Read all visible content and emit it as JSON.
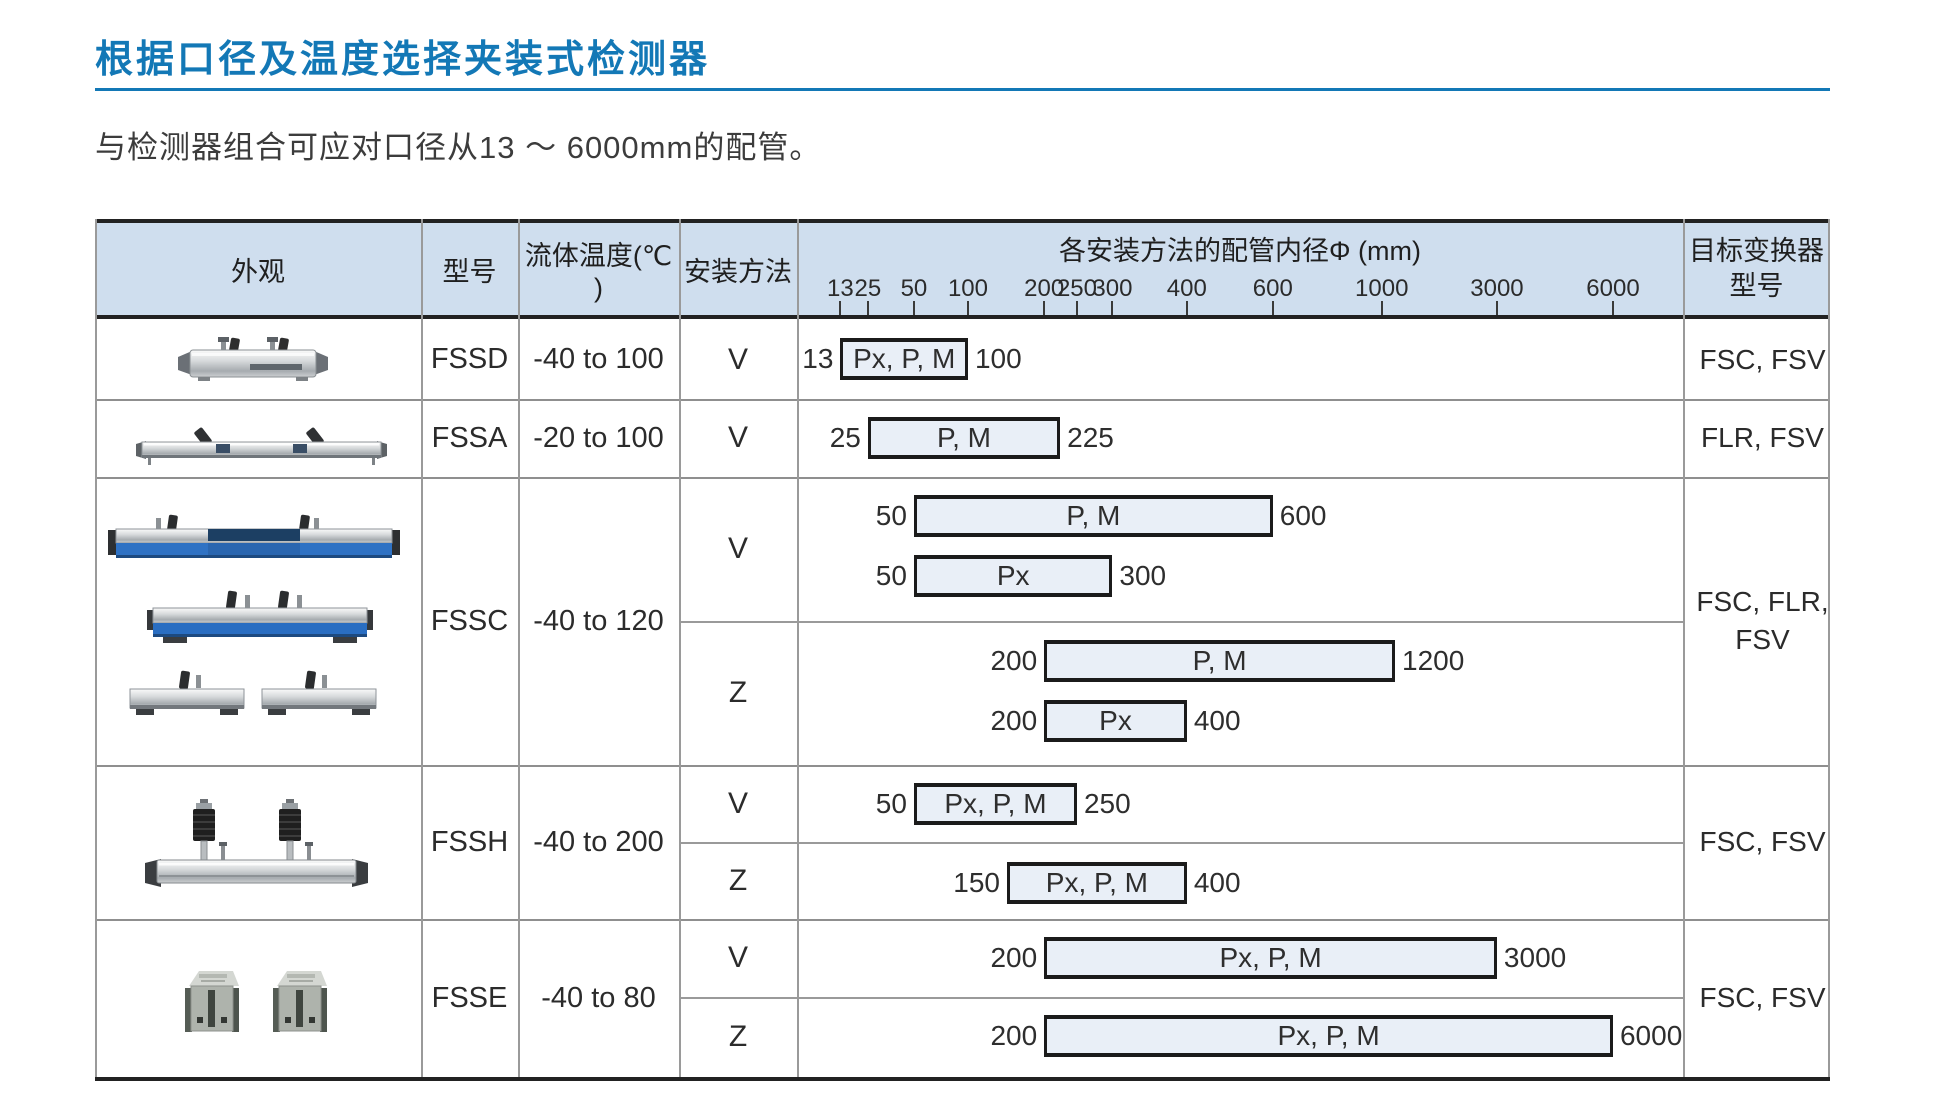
{
  "page": {
    "title": "根据口径及温度选择夹装式检测器",
    "subtitle": "与检测器组合可应对口径从13 ～ 6000mm的配管。"
  },
  "colors": {
    "accent_blue": "#1378b6",
    "header_bg": "#cfdeee",
    "bar_fill": "#e9eff7",
    "bar_border": "#1b1b1b"
  },
  "table": {
    "headers": {
      "appearance": "外观",
      "model": "型号",
      "fluid_temp": "流体温度(℃ )",
      "mounting_method": "安装方法",
      "axis_title": "各安装方法的配管内径Φ (mm)",
      "target_line1": "目标变换器",
      "target_line2": "型号"
    },
    "axis_ticks": [
      {
        "label": "13",
        "pct": 4.9
      },
      {
        "label": "25",
        "pct": 8.0
      },
      {
        "label": "50",
        "pct": 13.2
      },
      {
        "label": "100",
        "pct": 19.3
      },
      {
        "label": "200",
        "pct": 27.9
      },
      {
        "label": "250",
        "pct": 31.6
      },
      {
        "label": "300",
        "pct": 35.6
      },
      {
        "label": "400",
        "pct": 44.0
      },
      {
        "label": "600",
        "pct": 53.7
      },
      {
        "label": "1000",
        "pct": 66.0
      },
      {
        "label": "3000",
        "pct": 79.0
      },
      {
        "label": "6000",
        "pct": 92.1
      }
    ],
    "rows": [
      {
        "model": "FSSD",
        "temp": "-40 to 100",
        "target": "FSC, FSV",
        "subrows": [
          {
            "method": "V",
            "bars": [
              {
                "min": "13",
                "max": "100",
                "label": "Px, P, M",
                "start_pct": 4.9,
                "end_pct": 19.3
              }
            ]
          }
        ]
      },
      {
        "model": "FSSA",
        "temp": "-20 to 100",
        "target": "FLR, FSV",
        "subrows": [
          {
            "method": "V",
            "bars": [
              {
                "min": "25",
                "max": "225",
                "label": "P, M",
                "start_pct": 8.0,
                "end_pct": 29.7
              }
            ]
          }
        ]
      },
      {
        "model": "FSSC",
        "temp": "-40 to 120",
        "target": "FSC, FLR, FSV",
        "subrows": [
          {
            "method": "V",
            "bars": [
              {
                "min": "50",
                "max": "600",
                "label": "P, M",
                "start_pct": 13.2,
                "end_pct": 53.7
              },
              {
                "min": "50",
                "max": "300",
                "label": "Px",
                "start_pct": 13.2,
                "end_pct": 35.6
              }
            ]
          },
          {
            "method": "Z",
            "bars": [
              {
                "min": "200",
                "max": "1200",
                "label": "P, M",
                "start_pct": 27.9,
                "end_pct": 67.5
              },
              {
                "min": "200",
                "max": "400",
                "label": "Px",
                "start_pct": 27.9,
                "end_pct": 44.0
              }
            ]
          }
        ]
      },
      {
        "model": "FSSH",
        "temp": "-40 to 200",
        "target": "FSC, FSV",
        "subrows": [
          {
            "method": "V",
            "bars": [
              {
                "min": "50",
                "max": "250",
                "label": "Px, P, M",
                "start_pct": 13.2,
                "end_pct": 31.6
              }
            ]
          },
          {
            "method": "Z",
            "bars": [
              {
                "min": "150",
                "max": "400",
                "label": "Px, P, M",
                "start_pct": 23.7,
                "end_pct": 44.0
              }
            ]
          }
        ]
      },
      {
        "model": "FSSE",
        "temp": "-40 to 80",
        "target": "FSC, FSV",
        "subrows": [
          {
            "method": "V",
            "bars": [
              {
                "min": "200",
                "max": "3000",
                "label": "Px, P, M",
                "start_pct": 27.9,
                "end_pct": 79.0
              }
            ]
          },
          {
            "method": "Z",
            "bars": [
              {
                "min": "200",
                "max": "6000",
                "label": "Px, P, M",
                "start_pct": 27.9,
                "end_pct": 92.1
              }
            ]
          }
        ]
      }
    ]
  }
}
